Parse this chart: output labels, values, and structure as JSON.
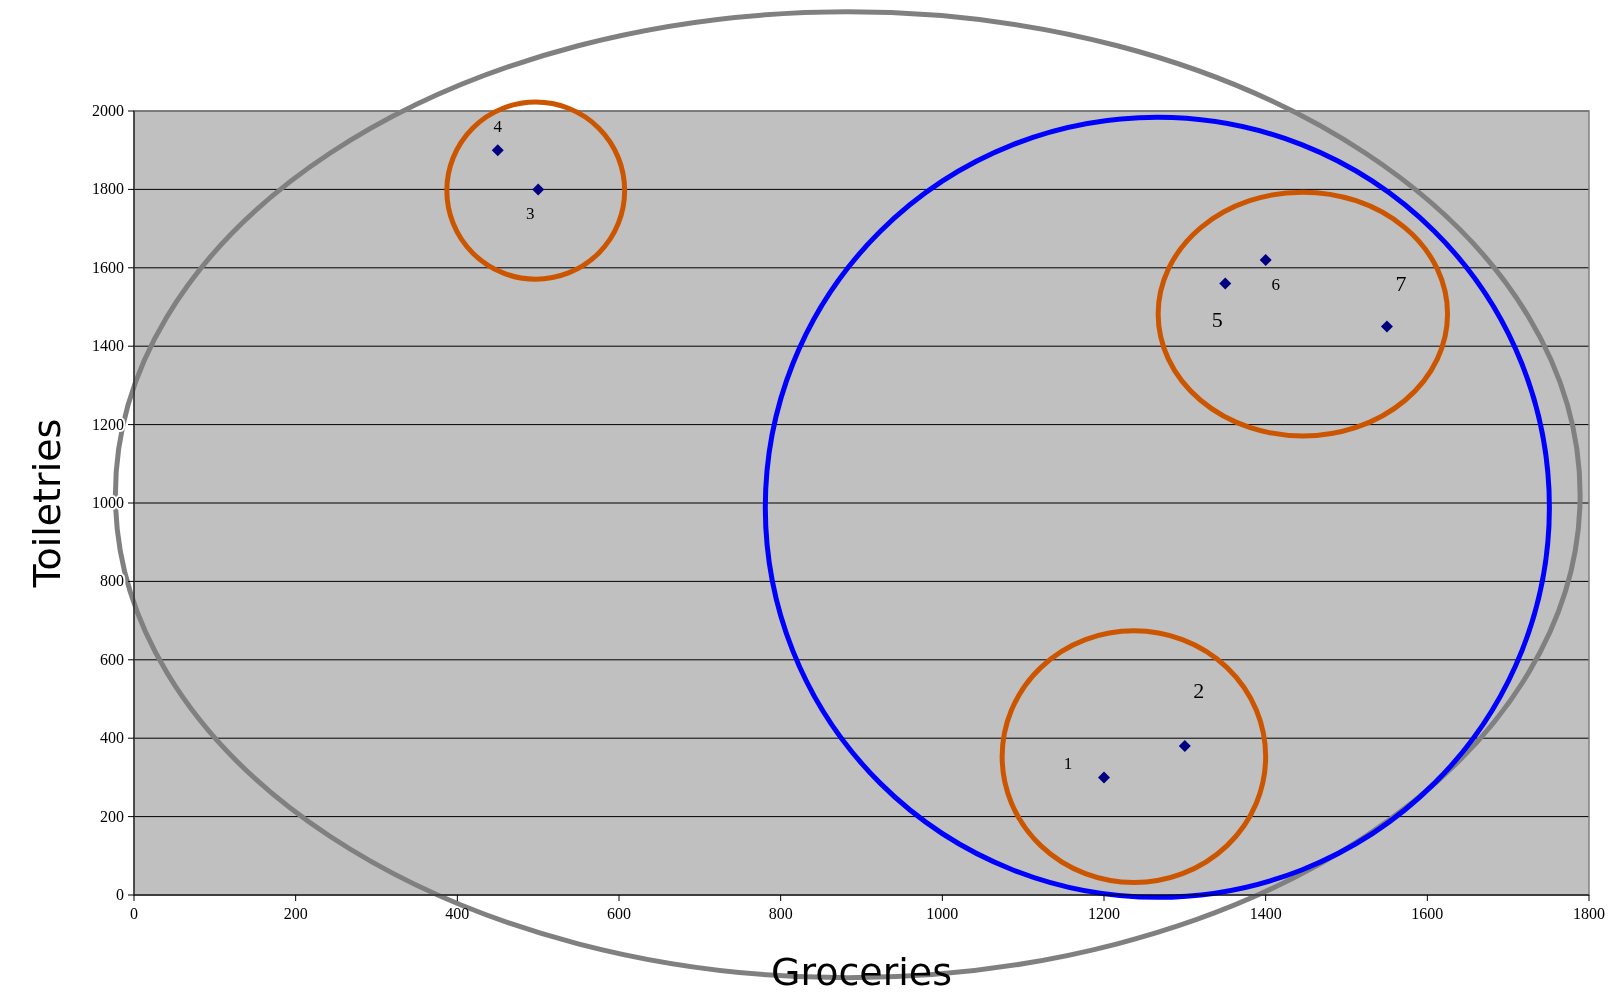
{
  "chart_data": {
    "type": "scatter",
    "xlabel": "Groceries",
    "ylabel": "Toiletries",
    "x": [
      1200,
      1300,
      500,
      450,
      1350,
      1400,
      1550
    ],
    "values": [
      300,
      380,
      1800,
      1900,
      1560,
      1620,
      1450
    ],
    "color": "#000080",
    "marker": "diamond",
    "xlim": [
      0,
      1800
    ],
    "xticks": [
      0,
      200,
      400,
      600,
      800,
      1000,
      1200,
      1400,
      1600,
      1800
    ],
    "ylim": [
      0,
      2000
    ],
    "yticks": [
      0,
      200,
      400,
      600,
      800,
      1000,
      1200,
      1400,
      1600,
      1800,
      2000
    ],
    "grid": "y",
    "annotations": [
      {
        "text": "1",
        "x": 1200,
        "y": 300
      },
      {
        "text": "2",
        "x": 1300,
        "y": 380
      },
      {
        "text": "3",
        "x": 500,
        "y": 1800
      },
      {
        "text": "4",
        "x": 450,
        "y": 1900
      },
      {
        "text": "5",
        "x": 1350,
        "y": 1560
      },
      {
        "text": "6",
        "x": 1400,
        "y": 1620
      },
      {
        "text": "7",
        "x": 1550,
        "y": 1450
      }
    ]
  }
}
